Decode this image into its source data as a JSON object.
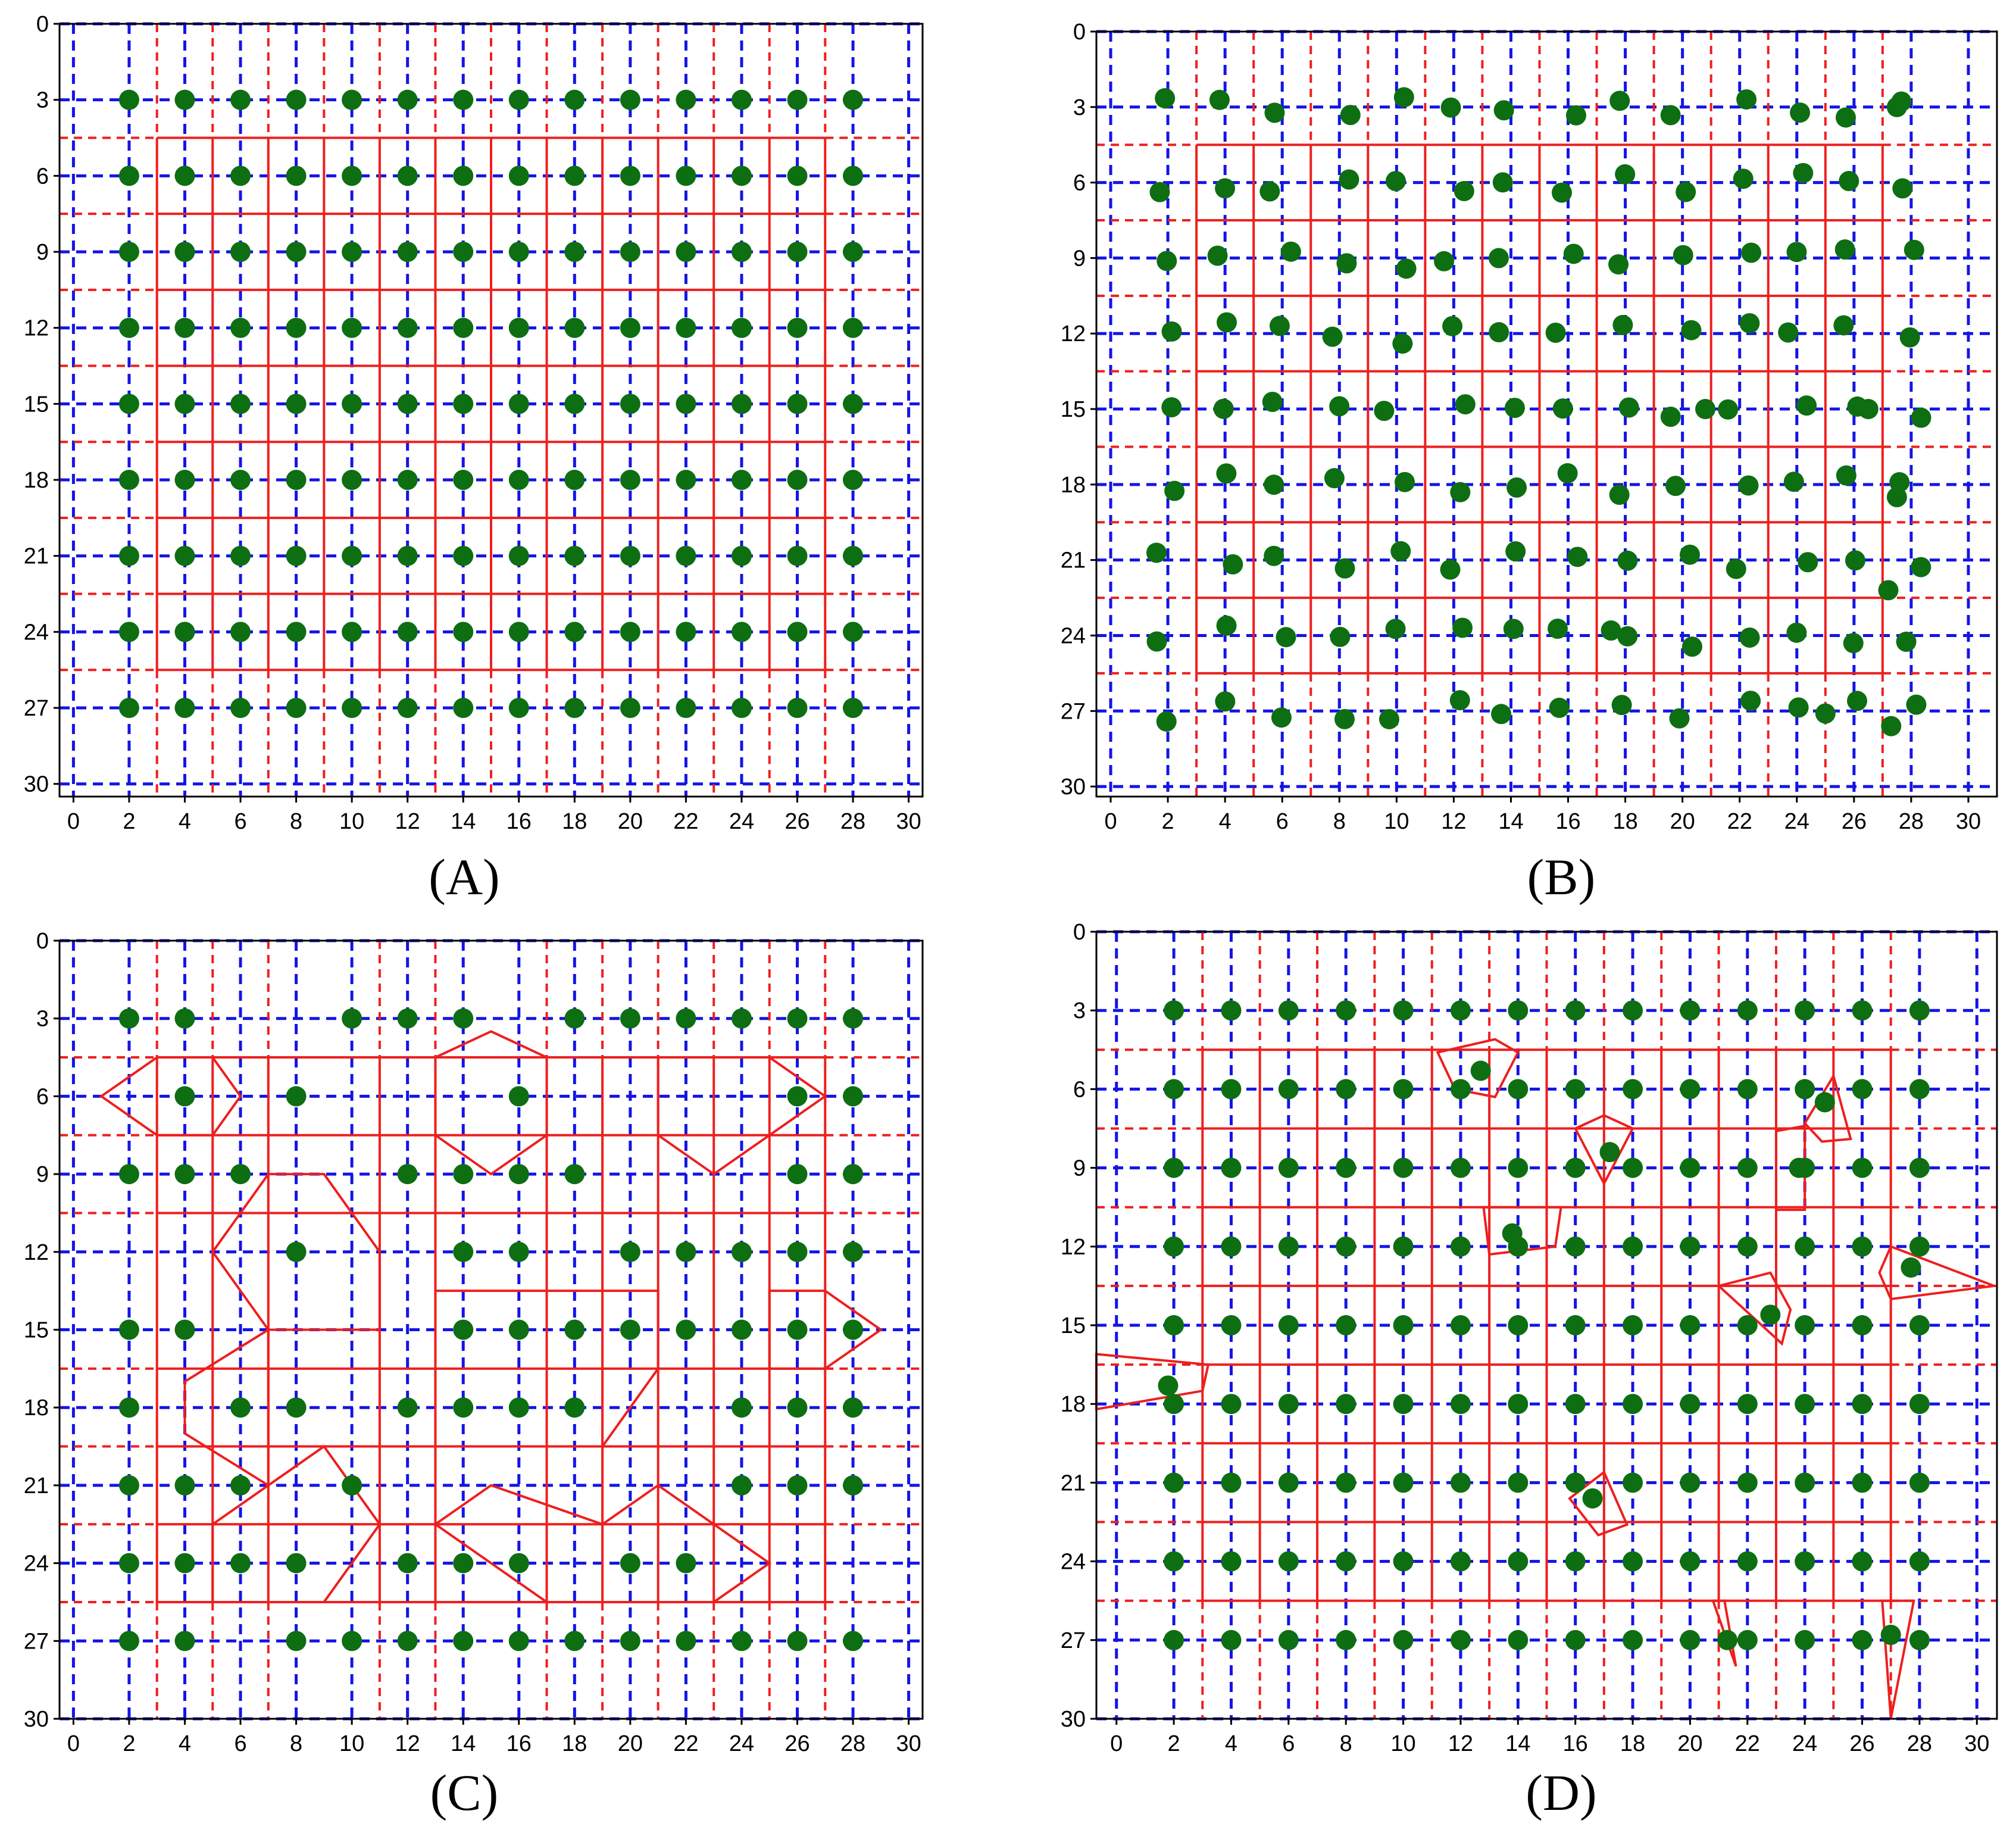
{
  "colors": {
    "grid": "#1414e6",
    "voronoi": "#ee1f1f",
    "point": "#0e6e12",
    "frame": "#000000"
  },
  "axis": {
    "x_ticks": [
      "0",
      "2",
      "4",
      "6",
      "8",
      "10",
      "12",
      "14",
      "16",
      "18",
      "20",
      "22",
      "24",
      "26",
      "28",
      "30"
    ],
    "y_ticks": [
      "0",
      "3",
      "6",
      "9",
      "12",
      "15",
      "18",
      "21",
      "24",
      "27",
      "30"
    ]
  },
  "chart_data": [
    {
      "type": "scatter",
      "caption": "(A)",
      "xlim": [
        -0.5,
        30.5
      ],
      "ylim": [
        30.5,
        0
      ],
      "grid": true,
      "grid_x": [
        0,
        2,
        4,
        6,
        8,
        10,
        12,
        14,
        16,
        18,
        20,
        22,
        24,
        26,
        28,
        30
      ],
      "grid_y": [
        0,
        3,
        6,
        9,
        12,
        15,
        18,
        21,
        24,
        27,
        30
      ],
      "points_x": [
        2,
        4,
        6,
        8,
        10,
        12,
        14,
        16,
        18,
        20,
        22,
        24,
        26,
        28
      ],
      "points_y": [
        3,
        6,
        9,
        12,
        15,
        18,
        21,
        24,
        27
      ],
      "missing": [],
      "extra": [],
      "perturb": 0,
      "bisector_x": [
        3,
        5,
        7,
        9,
        11,
        13,
        15,
        17,
        19,
        21,
        23,
        25,
        27
      ],
      "bisector_y": [
        4.5,
        7.5,
        10.5,
        13.5,
        16.5,
        19.5,
        22.5,
        25.5
      ],
      "cells": []
    },
    {
      "type": "scatter",
      "caption": "(B)",
      "xlim": [
        -0.5,
        31.0
      ],
      "ylim": [
        30.4,
        0
      ],
      "grid": true,
      "grid_x": [
        0,
        2,
        4,
        6,
        8,
        10,
        12,
        14,
        16,
        18,
        20,
        22,
        24,
        26,
        28,
        30
      ],
      "grid_y": [
        0,
        3,
        6,
        9,
        12,
        15,
        18,
        21,
        24,
        27,
        30
      ],
      "points_x": [
        2,
        4,
        6,
        8,
        10,
        12,
        14,
        16,
        18,
        20,
        22,
        24,
        26,
        28
      ],
      "points_y": [
        3,
        6,
        9,
        12,
        15,
        18,
        21,
        24,
        27
      ],
      "missing": [],
      "extra": [
        [
          27.5,
          3
        ],
        [
          27.5,
          18.5
        ],
        [
          26.5,
          15
        ],
        [
          20.8,
          15
        ],
        [
          17.5,
          23.8
        ],
        [
          25,
          27.1
        ],
        [
          27.2,
          22.2
        ],
        [
          27.3,
          27.6
        ]
      ],
      "perturb": 0.45,
      "bisector_x": [
        3,
        5,
        7,
        9,
        11,
        13,
        15,
        17,
        19,
        21,
        23,
        25,
        27
      ],
      "bisector_y": [
        4.5,
        7.5,
        10.5,
        13.5,
        16.5,
        19.5,
        22.5,
        25.5
      ],
      "cells": []
    },
    {
      "type": "scatter",
      "caption": "(C)",
      "xlim": [
        -0.5,
        30.5
      ],
      "ylim": [
        30.0,
        0
      ],
      "grid": true,
      "grid_x": [
        0,
        2,
        4,
        6,
        8,
        10,
        12,
        14,
        16,
        18,
        20,
        22,
        24,
        26,
        28,
        30
      ],
      "grid_y": [
        0,
        3,
        6,
        9,
        12,
        15,
        18,
        21,
        24,
        27,
        30
      ],
      "points_x": [
        2,
        4,
        6,
        8,
        10,
        12,
        14,
        16,
        18,
        20,
        22,
        24,
        26,
        28
      ],
      "points_y": [
        3,
        6,
        9,
        12,
        15,
        18,
        21,
        24,
        27
      ],
      "missing": [
        [
          6,
          3
        ],
        [
          8,
          3
        ],
        [
          16,
          3
        ],
        [
          2,
          6
        ],
        [
          6,
          6
        ],
        [
          10,
          6
        ],
        [
          12,
          6
        ],
        [
          14,
          6
        ],
        [
          18,
          6
        ],
        [
          20,
          6
        ],
        [
          22,
          6
        ],
        [
          24,
          6
        ],
        [
          8,
          9
        ],
        [
          10,
          9
        ],
        [
          20,
          9
        ],
        [
          22,
          9
        ],
        [
          24,
          9
        ],
        [
          2,
          12
        ],
        [
          4,
          12
        ],
        [
          6,
          12
        ],
        [
          10,
          12
        ],
        [
          12,
          12
        ],
        [
          18,
          12
        ],
        [
          6,
          15
        ],
        [
          8,
          15
        ],
        [
          10,
          15
        ],
        [
          12,
          15
        ],
        [
          4,
          18
        ],
        [
          10,
          18
        ],
        [
          20,
          18
        ],
        [
          22,
          18
        ],
        [
          8,
          21
        ],
        [
          12,
          21
        ],
        [
          14,
          21
        ],
        [
          16,
          21
        ],
        [
          18,
          21
        ],
        [
          20,
          21
        ],
        [
          22,
          21
        ],
        [
          10,
          24
        ],
        [
          18,
          24
        ],
        [
          24,
          24
        ],
        [
          26,
          24
        ],
        [
          28,
          24
        ],
        [
          6,
          27
        ]
      ],
      "extra": [],
      "perturb": 0,
      "bisector_x": [
        3,
        5,
        7,
        11,
        13,
        17,
        19,
        21,
        23,
        25,
        27
      ],
      "bisector_y": [
        4.5,
        7.5,
        10.5,
        16.5,
        19.5,
        22.5,
        25.5
      ],
      "cells": [
        [
          [
            3,
            4.5
          ],
          [
            5,
            4.5
          ],
          [
            6,
            6
          ],
          [
            5,
            7.5
          ],
          [
            3,
            7.5
          ],
          [
            1,
            6
          ]
        ],
        [
          [
            9,
            9
          ],
          [
            11,
            12
          ],
          [
            11,
            15
          ],
          [
            9,
            15
          ],
          [
            7,
            15
          ],
          [
            5,
            12
          ],
          [
            7,
            9
          ]
        ],
        [
          [
            15,
            3.5
          ],
          [
            17,
            4.5
          ],
          [
            17,
            7.5
          ],
          [
            15,
            9
          ],
          [
            13,
            7.5
          ],
          [
            13,
            4.5
          ]
        ],
        [
          [
            23,
            4.5
          ],
          [
            25,
            4.5
          ],
          [
            27,
            6
          ],
          [
            25,
            7.5
          ],
          [
            23,
            9
          ],
          [
            21,
            7.5
          ],
          [
            21,
            4.5
          ]
        ],
        [
          [
            13,
            13.5
          ],
          [
            21,
            13.5
          ],
          [
            21,
            16.5
          ],
          [
            19,
            19.5
          ],
          [
            13,
            19.5
          ]
        ],
        [
          [
            27,
            13.5
          ],
          [
            29,
            15
          ],
          [
            27,
            16.5
          ],
          [
            25,
            16.5
          ],
          [
            25,
            13.5
          ]
        ],
        [
          [
            15,
            21
          ],
          [
            19,
            22.5
          ],
          [
            21,
            21
          ],
          [
            23,
            22.5
          ],
          [
            25,
            24
          ],
          [
            23,
            25.5
          ],
          [
            17,
            25.5
          ],
          [
            13,
            22.5
          ]
        ],
        [
          [
            7,
            21
          ],
          [
            9,
            19.5
          ],
          [
            11,
            22.5
          ],
          [
            9,
            25.5
          ],
          [
            5,
            25.5
          ],
          [
            5,
            22.5
          ]
        ],
        [
          [
            4,
            17
          ],
          [
            7,
            15
          ],
          [
            7,
            21
          ],
          [
            4,
            19
          ]
        ]
      ]
    },
    {
      "type": "scatter",
      "caption": "(D)",
      "xlim": [
        -0.7,
        30.7
      ],
      "ylim": [
        30.0,
        0
      ],
      "grid": true,
      "grid_x": [
        0,
        2,
        4,
        6,
        8,
        10,
        12,
        14,
        16,
        18,
        20,
        22,
        24,
        26,
        28,
        30
      ],
      "grid_y": [
        0,
        3,
        6,
        9,
        12,
        15,
        18,
        21,
        24,
        27,
        30
      ],
      "points_x": [
        2,
        4,
        6,
        8,
        10,
        12,
        14,
        16,
        18,
        20,
        22,
        24,
        26,
        28
      ],
      "points_y": [
        3,
        6,
        9,
        12,
        15,
        18,
        21,
        24,
        27
      ],
      "missing": [],
      "extra": [
        [
          12.7,
          5.3
        ],
        [
          17.2,
          8.4
        ],
        [
          13.8,
          11.5
        ],
        [
          24.7,
          6.5
        ],
        [
          23.8,
          9
        ],
        [
          27.7,
          12.8
        ],
        [
          22.8,
          14.6
        ],
        [
          1.8,
          17.3
        ],
        [
          16.6,
          21.6
        ],
        [
          21.3,
          27
        ],
        [
          27,
          26.8
        ]
      ],
      "perturb": 0,
      "bisector_x": [
        3,
        5,
        7,
        9,
        11,
        13,
        15,
        17,
        19,
        21,
        23,
        25,
        27
      ],
      "bisector_y": [
        4.5,
        7.5,
        10.5,
        13.5,
        16.5,
        19.5,
        22.5,
        25.5
      ],
      "cells": [
        [
          [
            11.2,
            4.6
          ],
          [
            13.2,
            4.1
          ],
          [
            14,
            4.6
          ],
          [
            13.2,
            6.3
          ],
          [
            11.8,
            6
          ]
        ],
        [
          [
            16,
            7.5
          ],
          [
            17,
            7
          ],
          [
            18,
            7.5
          ],
          [
            17,
            9.6
          ]
        ],
        [
          [
            12.8,
            10.5
          ],
          [
            15.5,
            10.5
          ],
          [
            15.3,
            12
          ],
          [
            13,
            12.3
          ]
        ],
        [
          [
            23,
            7.6
          ],
          [
            24,
            7.4
          ],
          [
            24,
            10.6
          ],
          [
            23,
            10.6
          ]
        ],
        [
          [
            24,
            7.3
          ],
          [
            25,
            5.5
          ],
          [
            25.6,
            7.9
          ],
          [
            24.6,
            8
          ]
        ],
        [
          [
            27,
            12
          ],
          [
            30.6,
            13.5
          ],
          [
            27,
            14
          ],
          [
            26.6,
            13
          ]
        ],
        [
          [
            21,
            13.5
          ],
          [
            22.8,
            13
          ],
          [
            23.5,
            14.4
          ],
          [
            23.2,
            15.7
          ]
        ],
        [
          [
            15.8,
            21.6
          ],
          [
            17,
            20.6
          ],
          [
            17.8,
            22.6
          ],
          [
            16.8,
            23
          ]
        ],
        [
          [
            20.8,
            25.5
          ],
          [
            21.2,
            25.5
          ],
          [
            21.6,
            28
          ]
        ],
        [
          [
            26.7,
            25.5
          ],
          [
            27.8,
            25.5
          ],
          [
            27,
            30
          ]
        ],
        [
          [
            -0.7,
            16.1
          ],
          [
            3.2,
            16.5
          ],
          [
            3,
            17.5
          ],
          [
            -0.7,
            18.2
          ]
        ]
      ]
    }
  ]
}
